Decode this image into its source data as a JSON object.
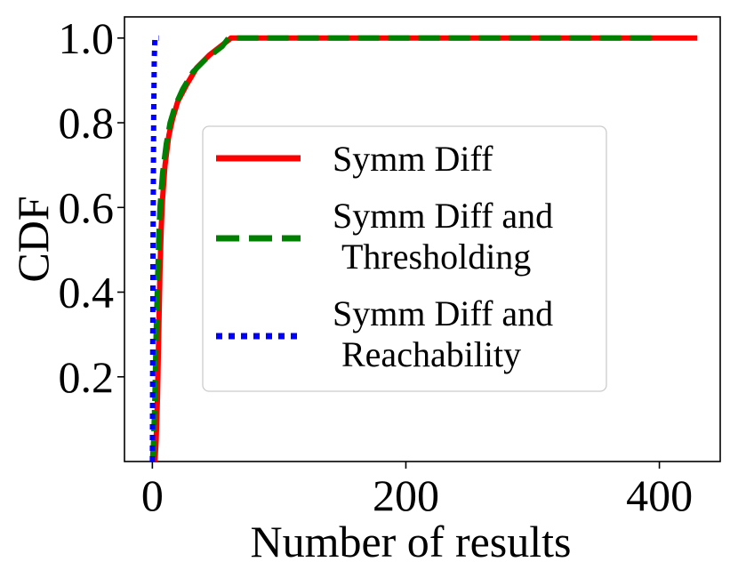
{
  "chart_data": {
    "type": "line",
    "title": "",
    "xlabel": "Number of results",
    "ylabel": "CDF",
    "xlim": [
      -22,
      448
    ],
    "ylim": [
      0.0,
      1.05
    ],
    "x_ticks": [
      0,
      200,
      400
    ],
    "x_tick_labels": [
      "0",
      "200",
      "400"
    ],
    "y_ticks": [
      0.2,
      0.4,
      0.6,
      0.8,
      1.0
    ],
    "y_tick_labels": [
      "0.2",
      "0.4",
      "0.6",
      "0.8",
      "1.0"
    ],
    "grid": false,
    "legend_position": "center-right",
    "series": [
      {
        "name": "Symm Diff",
        "legend_lines": [
          "Symm Diff"
        ],
        "color": "#ff0000",
        "style": "solid",
        "points": [
          [
            2,
            0.0
          ],
          [
            3,
            0.05
          ],
          [
            4,
            0.15
          ],
          [
            5,
            0.3
          ],
          [
            6,
            0.45
          ],
          [
            7,
            0.55
          ],
          [
            8,
            0.62
          ],
          [
            10,
            0.7
          ],
          [
            13,
            0.77
          ],
          [
            16,
            0.81
          ],
          [
            20,
            0.85
          ],
          [
            27,
            0.89
          ],
          [
            35,
            0.93
          ],
          [
            45,
            0.96
          ],
          [
            60,
            0.995
          ],
          [
            62,
            1.0
          ],
          [
            430,
            1.0
          ]
        ]
      },
      {
        "name": "Symm Diff and Thresholding",
        "legend_lines": [
          "Symm Diff and",
          "Thresholding"
        ],
        "color": "#008000",
        "style": "dashed",
        "points": [
          [
            0,
            0.0
          ],
          [
            1,
            0.05
          ],
          [
            2,
            0.15
          ],
          [
            3,
            0.3
          ],
          [
            4,
            0.42
          ],
          [
            5,
            0.52
          ],
          [
            6,
            0.6
          ],
          [
            8,
            0.68
          ],
          [
            11,
            0.75
          ],
          [
            14,
            0.8
          ],
          [
            18,
            0.84
          ],
          [
            24,
            0.88
          ],
          [
            32,
            0.92
          ],
          [
            42,
            0.95
          ],
          [
            55,
            0.98
          ],
          [
            60,
            1.0
          ],
          [
            395,
            1.0
          ]
        ]
      },
      {
        "name": "Symm Diff and Reachability",
        "legend_lines": [
          "Symm Diff and",
          "Reachability"
        ],
        "color": "#0000ff",
        "style": "dotted",
        "points": [
          [
            0,
            0.0
          ],
          [
            0.5,
            0.5
          ],
          [
            1,
            0.8
          ],
          [
            1.5,
            0.95
          ],
          [
            2,
            1.0
          ],
          [
            5,
            1.0
          ]
        ]
      }
    ]
  }
}
